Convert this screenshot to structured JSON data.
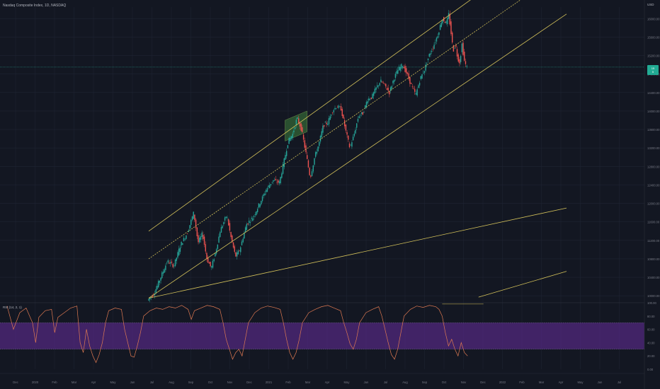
{
  "chart": {
    "title": "Nasdaq Composite Index, 1D, NASDAQ",
    "currency": "USD",
    "price_tag": {
      "value": "15",
      "sub": "5"
    },
    "oscillator_title": "RSI (14, 2, 1)"
  },
  "colors": {
    "background": "#131722",
    "up": "#26a69a",
    "down": "#ef5350",
    "channel": "#d4c25a",
    "box_fill": "#2f5a33",
    "rsi_line": "#e07a52",
    "rsi_band": "#5b2a8c",
    "grid": "#1f2433",
    "axis_text": "#787b86"
  },
  "chart_data": {
    "type": "candlestick",
    "price_axis": {
      "ticks": [
        "16000.00",
        "15600.00",
        "15200.00",
        "14800.00",
        "14400.00",
        "14000.00",
        "13600.00",
        "13200.00",
        "12800.00",
        "12400.00",
        "12000.00",
        "11600.00",
        "11200.00",
        "10800.00",
        "10400.00",
        "10000.00"
      ],
      "range": [
        9850,
        16250
      ]
    },
    "time_axis": {
      "ticks": [
        "Dec",
        "2020",
        "Feb",
        "Mar",
        "Apr",
        "May",
        "Jun",
        "Jul",
        "Aug",
        "Sep",
        "Oct",
        "Nov",
        "Dec",
        "2021",
        "Feb",
        "Mar",
        "Apr",
        "May",
        "Jun",
        "Jul",
        "Aug",
        "Sep",
        "Oct",
        "Nov",
        "Dec",
        "2022",
        "Feb",
        "Mar",
        "Apr",
        "May",
        "Jun",
        "Jul"
      ]
    },
    "rsi_axis": {
      "ticks": [
        "100.00",
        "80.00",
        "60.00",
        "40.00",
        "20.00",
        "0.00"
      ],
      "range": [
        0,
        100
      ],
      "band": [
        30,
        70
      ]
    },
    "price_path": [
      [
        0,
        9900
      ],
      [
        3,
        10050
      ],
      [
        6,
        10400
      ],
      [
        9,
        10750
      ],
      [
        12,
        10650
      ],
      [
        15,
        11100
      ],
      [
        18,
        11350
      ],
      [
        21,
        11800
      ],
      [
        23,
        11150
      ],
      [
        25,
        11350
      ],
      [
        27,
        10800
      ],
      [
        29,
        10600
      ],
      [
        31,
        10950
      ],
      [
        33,
        11400
      ],
      [
        36,
        11750
      ],
      [
        38,
        11250
      ],
      [
        40,
        10850
      ],
      [
        42,
        11000
      ],
      [
        45,
        11550
      ],
      [
        48,
        11700
      ],
      [
        51,
        12000
      ],
      [
        54,
        12300
      ],
      [
        57,
        12500
      ],
      [
        60,
        12450
      ],
      [
        62,
        12900
      ],
      [
        64,
        13350
      ],
      [
        66,
        13500
      ],
      [
        68,
        13850
      ],
      [
        70,
        13600
      ],
      [
        72,
        13100
      ],
      [
        74,
        12550
      ],
      [
        76,
        13000
      ],
      [
        78,
        13300
      ],
      [
        80,
        13700
      ],
      [
        82,
        13750
      ],
      [
        84,
        14000
      ],
      [
        86,
        14100
      ],
      [
        88,
        14050
      ],
      [
        90,
        13600
      ],
      [
        92,
        13200
      ],
      [
        94,
        13500
      ],
      [
        96,
        13900
      ],
      [
        98,
        13950
      ],
      [
        100,
        14250
      ],
      [
        102,
        14300
      ],
      [
        104,
        14500
      ],
      [
        106,
        14650
      ],
      [
        108,
        14550
      ],
      [
        110,
        14400
      ],
      [
        112,
        14700
      ],
      [
        114,
        14900
      ],
      [
        116,
        15000
      ],
      [
        118,
        14800
      ],
      [
        120,
        14550
      ],
      [
        122,
        14350
      ],
      [
        124,
        14700
      ],
      [
        126,
        14900
      ],
      [
        128,
        15200
      ],
      [
        130,
        15400
      ],
      [
        132,
        15650
      ],
      [
        134,
        16000
      ],
      [
        136,
        15900
      ],
      [
        137,
        16100
      ],
      [
        138,
        15700
      ],
      [
        139,
        15300
      ],
      [
        140,
        15450
      ],
      [
        141,
        15150
      ],
      [
        142,
        15050
      ],
      [
        143,
        15450
      ],
      [
        144,
        15100
      ],
      [
        145,
        14950
      ]
    ],
    "channel": {
      "upper": [
        [
          0,
          11400
        ],
        [
          190,
          17900
        ]
      ],
      "mid": [
        [
          0,
          10800
        ],
        [
          190,
          17100
        ]
      ],
      "lower": [
        [
          0,
          9950
        ],
        [
          190,
          16100
        ]
      ]
    },
    "trend_lines": [
      [
        [
          0,
          9950
        ],
        [
          190,
          11900
        ]
      ],
      [
        [
          150,
          9970
        ],
        [
          190,
          10530
        ]
      ]
    ],
    "box": {
      "corners": [
        [
          62,
          13800
        ],
        [
          72,
          14000
        ],
        [
          72,
          13550
        ],
        [
          62,
          13350
        ]
      ]
    },
    "rsi_path": [
      [
        0,
        95
      ],
      [
        2,
        60
      ],
      [
        4,
        85
      ],
      [
        6,
        92
      ],
      [
        8,
        70
      ],
      [
        9,
        40
      ],
      [
        10,
        78
      ],
      [
        12,
        88
      ],
      [
        14,
        90
      ],
      [
        15,
        55
      ],
      [
        16,
        78
      ],
      [
        18,
        85
      ],
      [
        20,
        92
      ],
      [
        22,
        95
      ],
      [
        23,
        40
      ],
      [
        24,
        25
      ],
      [
        25,
        60
      ],
      [
        26,
        35
      ],
      [
        27,
        20
      ],
      [
        28,
        10
      ],
      [
        29,
        22
      ],
      [
        30,
        40
      ],
      [
        31,
        70
      ],
      [
        32,
        88
      ],
      [
        34,
        92
      ],
      [
        36,
        90
      ],
      [
        37,
        60
      ],
      [
        38,
        40
      ],
      [
        39,
        20
      ],
      [
        40,
        18
      ],
      [
        41,
        35
      ],
      [
        42,
        55
      ],
      [
        43,
        80
      ],
      [
        45,
        88
      ],
      [
        47,
        92
      ],
      [
        49,
        90
      ],
      [
        51,
        94
      ],
      [
        53,
        92
      ],
      [
        55,
        96
      ],
      [
        57,
        90
      ],
      [
        58,
        75
      ],
      [
        59,
        88
      ],
      [
        61,
        92
      ],
      [
        63,
        96
      ],
      [
        65,
        94
      ],
      [
        67,
        90
      ],
      [
        68,
        70
      ],
      [
        69,
        45
      ],
      [
        70,
        30
      ],
      [
        71,
        15
      ],
      [
        72,
        25
      ],
      [
        73,
        30
      ],
      [
        74,
        20
      ],
      [
        75,
        45
      ],
      [
        76,
        70
      ],
      [
        78,
        85
      ],
      [
        80,
        92
      ],
      [
        82,
        95
      ],
      [
        84,
        93
      ],
      [
        86,
        90
      ],
      [
        87,
        70
      ],
      [
        88,
        45
      ],
      [
        89,
        25
      ],
      [
        90,
        15
      ],
      [
        91,
        25
      ],
      [
        92,
        45
      ],
      [
        93,
        70
      ],
      [
        95,
        85
      ],
      [
        97,
        90
      ],
      [
        99,
        94
      ],
      [
        101,
        96
      ],
      [
        103,
        92
      ],
      [
        105,
        88
      ],
      [
        106,
        70
      ],
      [
        107,
        55
      ],
      [
        108,
        38
      ],
      [
        109,
        30
      ],
      [
        110,
        45
      ],
      [
        111,
        70
      ],
      [
        113,
        85
      ],
      [
        115,
        90
      ],
      [
        117,
        94
      ],
      [
        118,
        80
      ],
      [
        119,
        60
      ],
      [
        120,
        40
      ],
      [
        121,
        22
      ],
      [
        122,
        15
      ],
      [
        123,
        30
      ],
      [
        124,
        55
      ],
      [
        125,
        80
      ],
      [
        127,
        90
      ],
      [
        129,
        95
      ],
      [
        131,
        93
      ],
      [
        133,
        96
      ],
      [
        135,
        94
      ],
      [
        136,
        90
      ],
      [
        137,
        80
      ],
      [
        138,
        55
      ],
      [
        139,
        35
      ],
      [
        140,
        45
      ],
      [
        141,
        30
      ],
      [
        142,
        20
      ],
      [
        143,
        40
      ],
      [
        144,
        25
      ],
      [
        145,
        20
      ]
    ],
    "rsi_trend_line": [
      [
        137,
        98
      ],
      [
        150,
        98
      ]
    ]
  }
}
